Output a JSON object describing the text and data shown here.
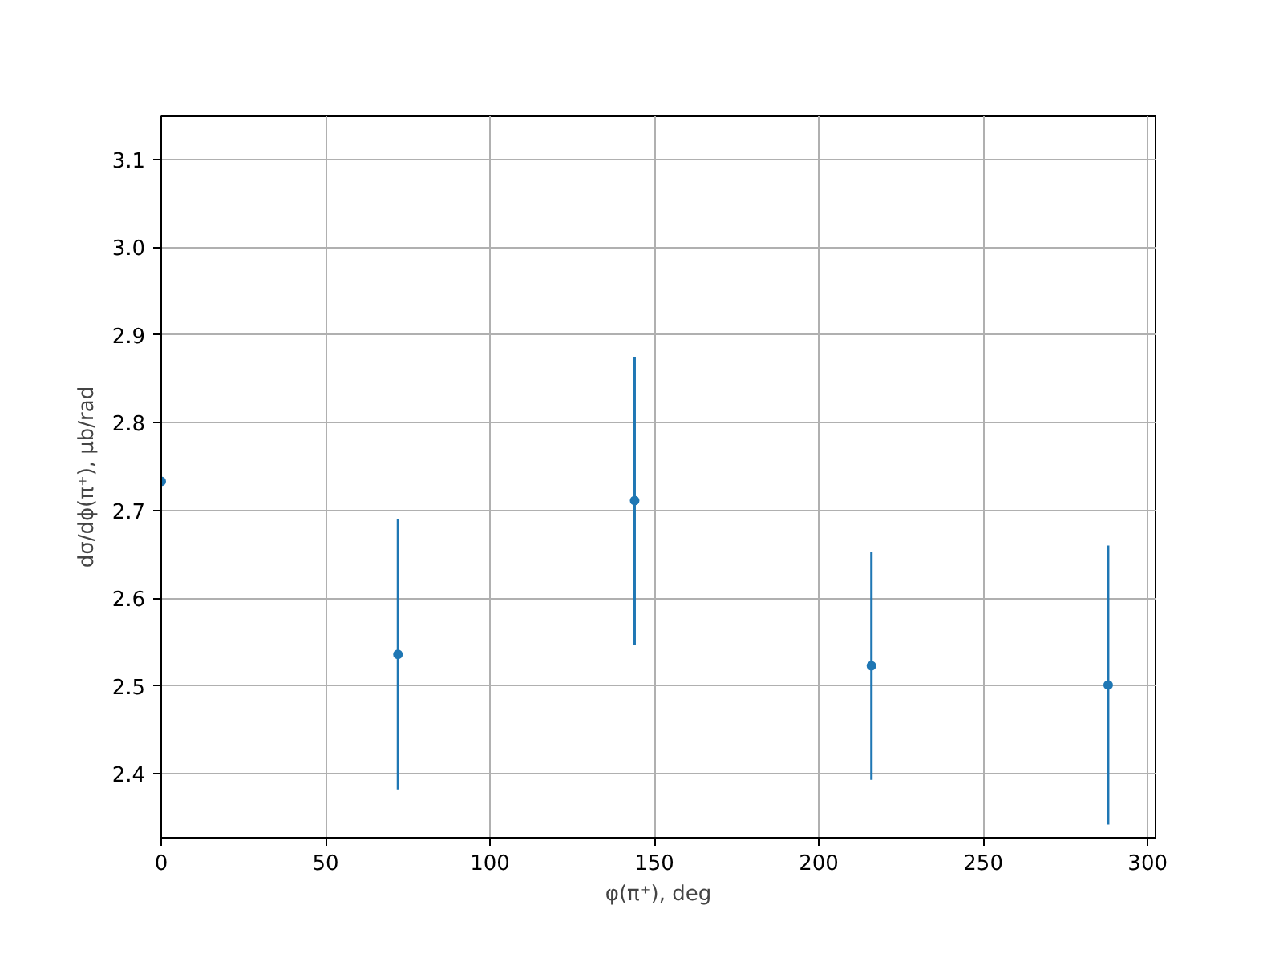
{
  "chart_data": {
    "type": "scatter",
    "xlabel": "φ(π⁺), deg",
    "ylabel": "dσ/dϕ(π⁺), μb/rad",
    "x": [
      0,
      72,
      144,
      216,
      288
    ],
    "series": [
      {
        "color": "#1f77b4",
        "values": [
          2.733,
          2.536,
          2.711,
          2.523,
          2.501
        ],
        "errors": [
          null,
          0.154,
          0.164,
          0.13,
          0.159
        ]
      }
    ],
    "xlim": [
      0,
      302.4
    ],
    "ylim": [
      2.327,
      3.149
    ],
    "xticks": [
      0,
      50,
      100,
      150,
      200,
      250,
      300
    ],
    "yticks": [
      2.4,
      2.5,
      2.6,
      2.7,
      2.8,
      2.9,
      {
        "value": 3,
        "label": "3.0"
      },
      3.1
    ],
    "grid": true,
    "marker": "circle"
  }
}
